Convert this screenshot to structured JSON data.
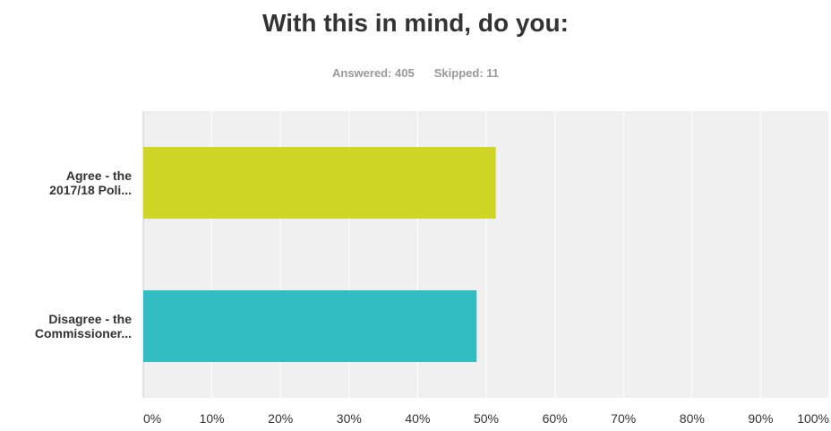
{
  "header": {
    "title": "With this in mind, do you:",
    "answered": "Answered: 405",
    "skipped": "Skipped: 11"
  },
  "colors": {
    "plot_background": "#f0f0f0",
    "gridline": "#ffffff",
    "axis": "#cccccc"
  },
  "chart_data": {
    "type": "bar",
    "orientation": "horizontal",
    "categories": [
      [
        "Agree - the",
        "2017/18 Poli..."
      ],
      [
        "Disagree - the",
        "Commissioner..."
      ]
    ],
    "values": [
      51.4,
      48.6
    ],
    "colors": [
      "#cfd625",
      "#31bdc1"
    ],
    "xlim": [
      0,
      100
    ],
    "ticks": [
      "0%",
      "10%",
      "20%",
      "30%",
      "40%",
      "50%",
      "60%",
      "70%",
      "80%",
      "90%",
      "100%"
    ],
    "grid": true
  }
}
